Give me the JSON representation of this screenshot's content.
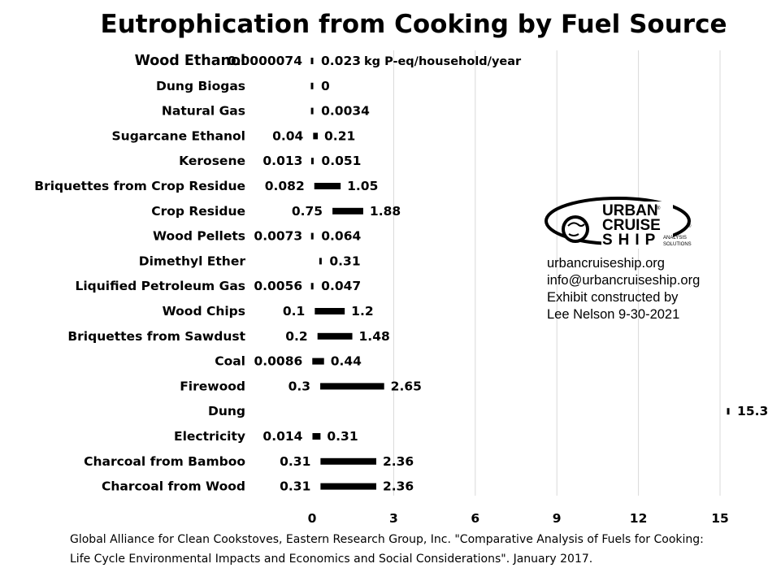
{
  "title": "Eutrophication from Cooking by Fuel Source",
  "chart_data": {
    "type": "bar",
    "subtype": "floating range (min to max)",
    "unit_label": "kg P-eq/household/year",
    "categories": [
      "Wood Ethanol",
      "Dung Biogas",
      "Natural Gas",
      "Sugarcane Ethanol",
      "Kerosene",
      "Briquettes from Crop Residue",
      "Crop Residue",
      "Wood Pellets",
      "Dimethyl Ether",
      "Liquified Petroleum Gas",
      "Wood Chips",
      "Briquettes from Sawdust",
      "Coal",
      "Firewood",
      "Dung",
      "Electricity",
      "Charcoal from Bamboo",
      "Charcoal from Wood"
    ],
    "low_labels": [
      "0.0000074",
      "",
      "",
      "0.04",
      "0.013",
      "0.082",
      "0.75",
      "0.0073",
      "",
      "0.0056",
      "0.1",
      "0.2",
      "0.0086",
      "0.3",
      "",
      "0.014",
      "0.31",
      "0.31"
    ],
    "high_labels": [
      "0.023",
      "0",
      "0.0034",
      "0.21",
      "0.051",
      "1.05",
      "1.88",
      "0.064",
      "0.31",
      "0.047",
      "1.2",
      "1.48",
      "0.44",
      "2.65",
      "15.3",
      "0.31",
      "2.36",
      "2.36"
    ],
    "low": [
      7.4e-06,
      0,
      0.0034,
      0.04,
      0.013,
      0.082,
      0.75,
      0.0073,
      0.31,
      0.0056,
      0.1,
      0.2,
      0.0086,
      0.3,
      15.3,
      0.014,
      0.31,
      0.31
    ],
    "high": [
      0.023,
      0,
      0.0034,
      0.21,
      0.051,
      1.05,
      1.88,
      0.064,
      0.31,
      0.047,
      1.2,
      1.48,
      0.44,
      2.65,
      15.3,
      0.31,
      2.36,
      2.36
    ],
    "x_ticks": [
      "0",
      "3",
      "6",
      "9",
      "12",
      "15"
    ],
    "xlim": [
      0,
      15
    ],
    "grid": "vertical",
    "bar_color": "#000000",
    "grid_color": "#d9d9d9"
  },
  "logo": {
    "line1": "URBAN",
    "line2": "CRUISE",
    "line3": "SHIP",
    "sub1": "ANALYSIS",
    "sub2": "SOLUTIONS",
    "reg": "®"
  },
  "contact": {
    "website": "urbancruiseship.org",
    "email": "info@urbancruiseship.org",
    "credit1": "Exhibit constructed by",
    "credit2": "Lee Nelson 9-30-2021"
  },
  "source": {
    "line1": "Global Alliance for Clean Cookstoves, Eastern Research Group, Inc. \"Comparative Analysis of Fuels for Cooking:",
    "line2": "Life Cycle Environmental Impacts and Economics and Social Considerations\". January 2017."
  }
}
